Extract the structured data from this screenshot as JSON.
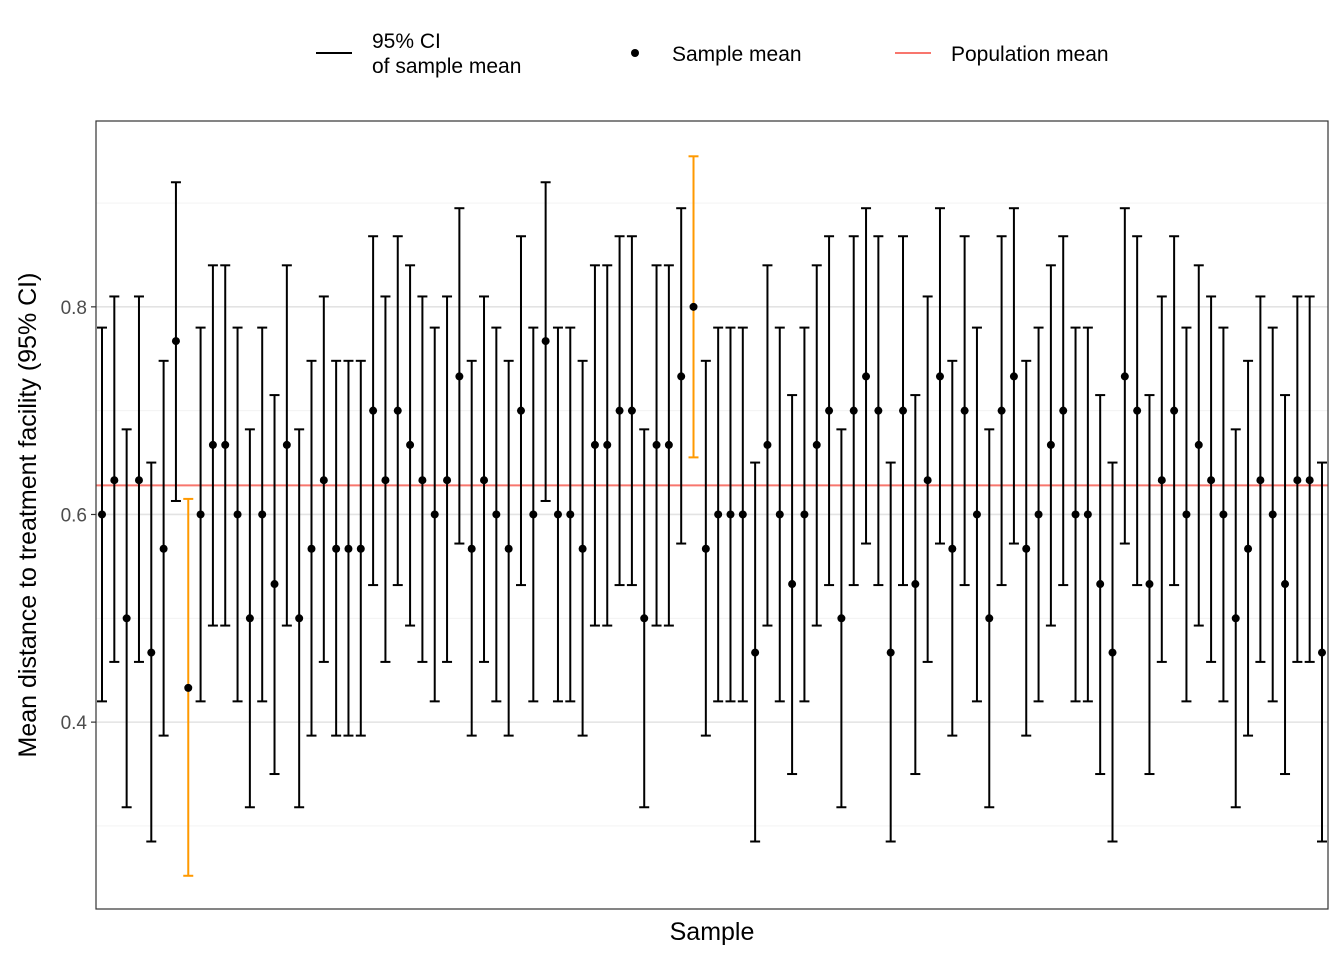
{
  "chart_data": {
    "type": "errorbar",
    "xlabel": "Sample",
    "ylabel": "Mean distance to treatment facility (95% CI)",
    "ylim": [
      0.22,
      0.979
    ],
    "yticks": [
      0.4,
      0.6,
      0.8
    ],
    "grid": true,
    "legend_position": "top",
    "legend": [
      {
        "label_line1": "95% CI",
        "label_line2": "of sample mean",
        "symbol": "line",
        "color": "#000000"
      },
      {
        "label": "Sample mean",
        "symbol": "point",
        "color": "#000000"
      },
      {
        "label": "Population mean",
        "symbol": "line",
        "color": "#F8766D"
      }
    ],
    "population_mean": 0.628,
    "colors": {
      "contains": "#000000",
      "misses": "#FF9900",
      "population": "#F8766D"
    },
    "means": [
      0.6,
      0.633,
      0.5,
      0.633,
      0.467,
      0.567,
      0.767,
      0.433,
      0.6,
      0.667,
      0.667,
      0.6,
      0.5,
      0.6,
      0.533,
      0.667,
      0.5,
      0.567,
      0.633,
      0.567,
      0.567,
      0.567,
      0.7,
      0.633,
      0.7,
      0.667,
      0.633,
      0.6,
      0.633,
      0.733,
      0.567,
      0.633,
      0.6,
      0.567,
      0.7,
      0.6,
      0.767,
      0.6,
      0.6,
      0.567,
      0.667,
      0.667,
      0.7,
      0.7,
      0.5,
      0.667,
      0.667,
      0.733,
      0.8,
      0.567,
      0.6,
      0.6,
      0.6,
      0.467,
      0.667,
      0.6,
      0.533,
      0.6,
      0.667,
      0.7,
      0.5,
      0.7,
      0.733,
      0.7,
      0.467,
      0.7,
      0.533,
      0.633,
      0.733,
      0.567,
      0.7,
      0.6,
      0.5,
      0.7,
      0.733,
      0.567,
      0.6,
      0.667,
      0.7,
      0.6,
      0.6,
      0.533,
      0.467,
      0.733,
      0.7,
      0.533,
      0.633,
      0.7,
      0.6,
      0.667,
      0.633,
      0.6,
      0.5,
      0.567,
      0.633,
      0.6,
      0.533,
      0.633,
      0.633,
      0.467
    ],
    "lower": [
      0.42,
      0.458,
      0.318,
      0.458,
      0.285,
      0.387,
      0.613,
      0.252,
      0.42,
      0.493,
      0.493,
      0.42,
      0.318,
      0.42,
      0.35,
      0.493,
      0.318,
      0.387,
      0.458,
      0.387,
      0.387,
      0.387,
      0.532,
      0.458,
      0.532,
      0.493,
      0.458,
      0.42,
      0.458,
      0.572,
      0.387,
      0.458,
      0.42,
      0.387,
      0.532,
      0.42,
      0.613,
      0.42,
      0.42,
      0.387,
      0.493,
      0.493,
      0.532,
      0.532,
      0.318,
      0.493,
      0.493,
      0.572,
      0.655,
      0.387,
      0.42,
      0.42,
      0.42,
      0.285,
      0.493,
      0.42,
      0.35,
      0.42,
      0.493,
      0.532,
      0.318,
      0.532,
      0.572,
      0.532,
      0.285,
      0.532,
      0.35,
      0.458,
      0.572,
      0.387,
      0.532,
      0.42,
      0.318,
      0.532,
      0.572,
      0.387,
      0.42,
      0.493,
      0.532,
      0.42,
      0.42,
      0.35,
      0.285,
      0.572,
      0.532,
      0.35,
      0.458,
      0.532,
      0.42,
      0.493,
      0.458,
      0.42,
      0.318,
      0.387,
      0.458,
      0.42,
      0.35,
      0.458,
      0.458,
      0.285
    ],
    "upper": [
      0.78,
      0.81,
      0.682,
      0.81,
      0.65,
      0.748,
      0.92,
      0.615,
      0.78,
      0.84,
      0.84,
      0.78,
      0.682,
      0.78,
      0.715,
      0.84,
      0.682,
      0.748,
      0.81,
      0.748,
      0.748,
      0.748,
      0.868,
      0.81,
      0.868,
      0.84,
      0.81,
      0.78,
      0.81,
      0.895,
      0.748,
      0.81,
      0.78,
      0.748,
      0.868,
      0.78,
      0.92,
      0.78,
      0.78,
      0.748,
      0.84,
      0.84,
      0.868,
      0.868,
      0.682,
      0.84,
      0.84,
      0.895,
      0.945,
      0.748,
      0.78,
      0.78,
      0.78,
      0.65,
      0.84,
      0.78,
      0.715,
      0.78,
      0.84,
      0.868,
      0.682,
      0.868,
      0.895,
      0.868,
      0.65,
      0.868,
      0.715,
      0.81,
      0.895,
      0.748,
      0.868,
      0.78,
      0.682,
      0.868,
      0.895,
      0.748,
      0.78,
      0.84,
      0.868,
      0.78,
      0.78,
      0.715,
      0.65,
      0.895,
      0.868,
      0.715,
      0.81,
      0.868,
      0.78,
      0.84,
      0.81,
      0.78,
      0.682,
      0.748,
      0.81,
      0.78,
      0.715,
      0.81,
      0.81,
      0.65
    ]
  }
}
